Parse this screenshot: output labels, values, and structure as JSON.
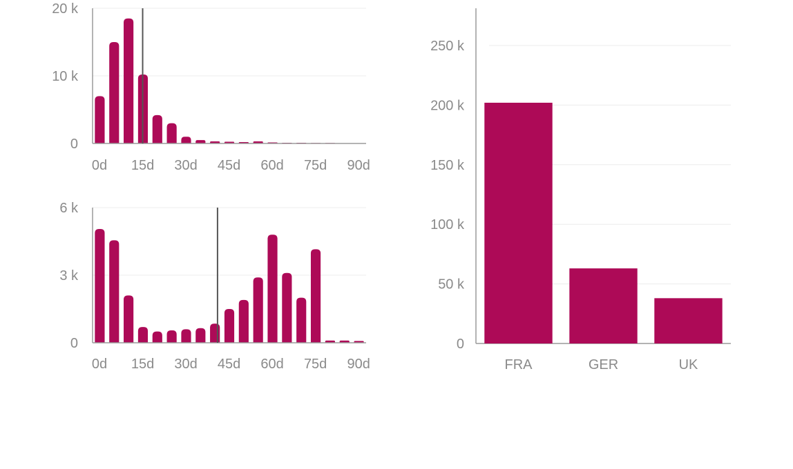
{
  "colors": {
    "bar": "#ad0a57",
    "tick_text": "#8a8a8a",
    "grid": "#ececec",
    "axis": "#9a9a9a",
    "marker": "#555555"
  },
  "chart_data": [
    {
      "id": "histogram-top",
      "type": "bar",
      "title": "",
      "xlabel": "",
      "ylabel": "",
      "x_unit": "days",
      "bin_width": 5,
      "xlim": [
        0,
        95
      ],
      "ylim": [
        0,
        20000
      ],
      "y_ticks": [
        {
          "value": 0,
          "label": "0"
        },
        {
          "value": 10000,
          "label": "10 k"
        },
        {
          "value": 20000,
          "label": "20 k"
        }
      ],
      "x_ticks": [
        {
          "value": 0,
          "label": "0d"
        },
        {
          "value": 15,
          "label": "15d"
        },
        {
          "value": 30,
          "label": "30d"
        },
        {
          "value": 45,
          "label": "45d"
        },
        {
          "value": 60,
          "label": "60d"
        },
        {
          "value": 75,
          "label": "75d"
        },
        {
          "value": 90,
          "label": "90d"
        }
      ],
      "marker_x": 15,
      "values": [
        7000,
        15000,
        18500,
        10200,
        4200,
        3000,
        1000,
        500,
        300,
        250,
        200,
        300,
        150,
        100,
        100,
        80,
        80,
        50,
        30
      ]
    },
    {
      "id": "histogram-bottom",
      "type": "bar",
      "title": "",
      "xlabel": "",
      "ylabel": "",
      "x_unit": "days",
      "bin_width": 5,
      "xlim": [
        0,
        95
      ],
      "ylim": [
        0,
        6000
      ],
      "y_ticks": [
        {
          "value": 0,
          "label": "0"
        },
        {
          "value": 3000,
          "label": "3 k"
        },
        {
          "value": 6000,
          "label": "6 k"
        }
      ],
      "x_ticks": [
        {
          "value": 0,
          "label": "0d"
        },
        {
          "value": 15,
          "label": "15d"
        },
        {
          "value": 30,
          "label": "30d"
        },
        {
          "value": 45,
          "label": "45d"
        },
        {
          "value": 60,
          "label": "60d"
        },
        {
          "value": 75,
          "label": "75d"
        },
        {
          "value": 90,
          "label": "90d"
        }
      ],
      "marker_x": 41,
      "values": [
        5050,
        4550,
        2100,
        700,
        500,
        550,
        600,
        650,
        850,
        1500,
        1900,
        2900,
        4800,
        3100,
        2000,
        4150,
        100,
        100,
        80
      ]
    },
    {
      "id": "country-bar",
      "type": "bar",
      "title": "",
      "xlabel": "",
      "ylabel": "",
      "ylim": [
        0,
        275000
      ],
      "y_ticks": [
        {
          "value": 0,
          "label": "0"
        },
        {
          "value": 50000,
          "label": "50 k"
        },
        {
          "value": 100000,
          "label": "100 k"
        },
        {
          "value": 150000,
          "label": "150 k"
        },
        {
          "value": 200000,
          "label": "200 k"
        },
        {
          "value": 250000,
          "label": "250 k"
        }
      ],
      "categories": [
        "FRA",
        "GER",
        "UK"
      ],
      "values": [
        202000,
        63000,
        38000
      ]
    }
  ]
}
